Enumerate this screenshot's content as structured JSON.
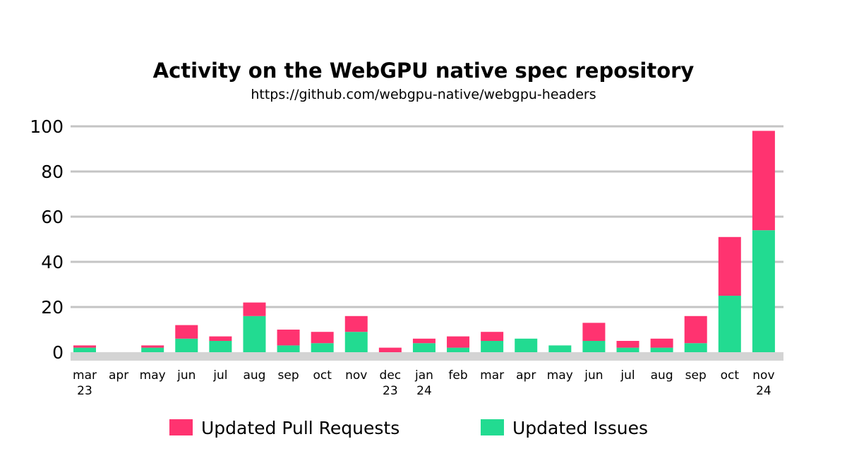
{
  "chart_data": {
    "type": "bar",
    "stacked": true,
    "title": "Activity on the WebGPU native spec repository",
    "subtitle": "https://github.com/webgpu-native/webgpu-headers",
    "categories": [
      [
        "mar",
        "23"
      ],
      [
        "apr"
      ],
      [
        "may"
      ],
      [
        "jun"
      ],
      [
        "jul"
      ],
      [
        "aug"
      ],
      [
        "sep"
      ],
      [
        "oct"
      ],
      [
        "nov"
      ],
      [
        "dec",
        "23"
      ],
      [
        "jan",
        "24"
      ],
      [
        "feb"
      ],
      [
        "mar"
      ],
      [
        "apr"
      ],
      [
        "may"
      ],
      [
        "jun"
      ],
      [
        "jul"
      ],
      [
        "aug"
      ],
      [
        "sep"
      ],
      [
        "oct"
      ],
      [
        "nov",
        "24"
      ]
    ],
    "series": [
      {
        "name": "Updated Issues",
        "color": "#22db91",
        "values": [
          2,
          0,
          2,
          6,
          5,
          16,
          3,
          4,
          9,
          0,
          4,
          2,
          5,
          6,
          3,
          5,
          2,
          2,
          4,
          25,
          54
        ]
      },
      {
        "name": "Updated Pull Requests",
        "color": "#ff3370",
        "values": [
          1,
          0,
          1,
          6,
          2,
          6,
          7,
          5,
          7,
          2,
          2,
          5,
          4,
          0,
          0,
          8,
          3,
          4,
          12,
          26,
          44
        ]
      }
    ],
    "yticks": [
      0,
      20,
      40,
      60,
      80,
      100
    ],
    "ylim": [
      0,
      100
    ],
    "grid": true,
    "legend": {
      "placement": "bottom",
      "order": [
        "Updated Pull Requests",
        "Updated Issues"
      ]
    }
  }
}
